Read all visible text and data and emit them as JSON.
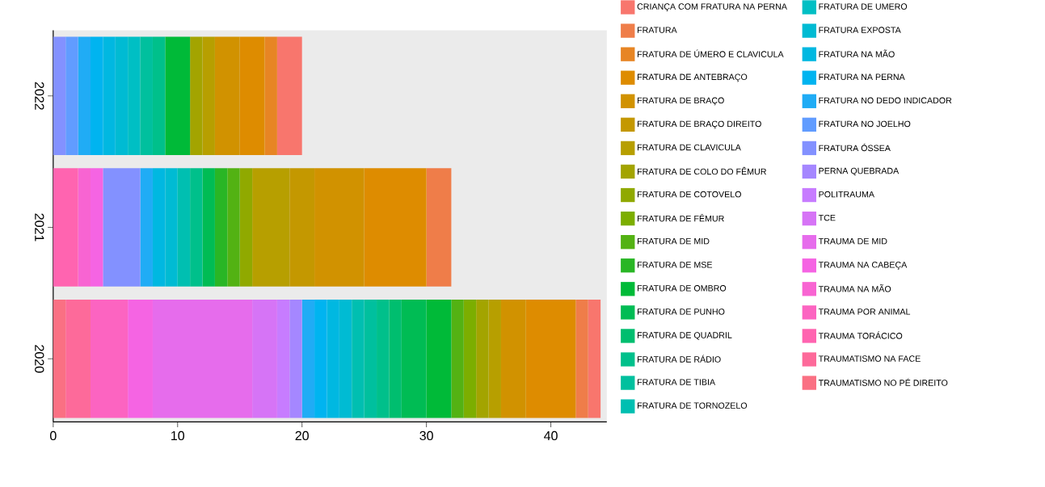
{
  "chart_data": {
    "type": "bar",
    "orientation": "horizontal",
    "stacked": true,
    "categories": [
      "2022",
      "2021",
      "2020"
    ],
    "xlim": [
      0,
      44.5
    ],
    "xticks": [
      0,
      10,
      20,
      30,
      40
    ],
    "legend": "right",
    "series": [
      {
        "name": "TRAUMATISMO NO PÉ DIREITO",
        "color": "#FA7083",
        "values": [
          null,
          null,
          1
        ]
      },
      {
        "name": "TRAUMATISMO NA FACE",
        "color": "#FD6A9A",
        "values": [
          null,
          null,
          2
        ]
      },
      {
        "name": "TRAUMA TORÁCICO",
        "color": "#FF64B0",
        "values": [
          null,
          2,
          null
        ]
      },
      {
        "name": "TRAUMA POR ANIMAL",
        "color": "#FC64C1",
        "values": [
          null,
          null,
          3
        ]
      },
      {
        "name": "TRAUMA NA MÃO",
        "color": "#F864D2",
        "values": [
          null,
          1,
          null
        ]
      },
      {
        "name": "TRAUMA NA CABEÇA",
        "color": "#F564E3",
        "values": [
          null,
          1,
          2
        ]
      },
      {
        "name": "TRAUMA DE MID",
        "color": "#E66CEC",
        "values": [
          null,
          null,
          8
        ]
      },
      {
        "name": "TCE",
        "color": "#D674F6",
        "values": [
          null,
          null,
          2
        ]
      },
      {
        "name": "POLITRAUMA",
        "color": "#C77CFF",
        "values": [
          null,
          null,
          1
        ]
      },
      {
        "name": "PERNA QUEBRADA",
        "color": "#A587FF",
        "values": [
          null,
          null,
          1
        ]
      },
      {
        "name": "FRATURA ÓSSEA",
        "color": "#8391FF",
        "values": [
          1,
          3,
          null
        ]
      },
      {
        "name": "FRATURA NO JOELHO",
        "color": "#619CFF",
        "values": [
          1,
          null,
          null
        ]
      },
      {
        "name": "FRATURA NO DEDO INDICADOR",
        "color": "#20ACF5",
        "values": [
          1,
          1,
          1
        ]
      },
      {
        "name": "FRATURA NA PERNA",
        "color": "#00B4F0",
        "values": [
          1,
          null,
          1
        ]
      },
      {
        "name": "FRATURA NA MÃO",
        "color": "#00B8E1",
        "values": [
          1,
          1,
          1
        ]
      },
      {
        "name": "FRATURA EXPOSTA",
        "color": "#00BBD3",
        "values": [
          1,
          1,
          1
        ]
      },
      {
        "name": "FRATURA DE UMERO",
        "color": "#00BFC4",
        "values": [
          1,
          null,
          null
        ]
      },
      {
        "name": "FRATURA DE TORNOZELO",
        "color": "#00BFB1",
        "values": [
          null,
          1,
          1
        ]
      },
      {
        "name": "FRATURA DE TIBIA",
        "color": "#00C09E",
        "values": [
          1,
          null,
          1
        ]
      },
      {
        "name": "FRATURA DE RÁDIO",
        "color": "#00C08B",
        "values": [
          1,
          1,
          1
        ]
      },
      {
        "name": "FRATURA DE QUADRIL",
        "color": "#00BE6F",
        "values": [
          null,
          null,
          1
        ]
      },
      {
        "name": "FRATURA DE PUNHO",
        "color": "#00BC54",
        "values": [
          null,
          1,
          2
        ]
      },
      {
        "name": "FRATURA DE OMBRO",
        "color": "#00BA38",
        "values": [
          2,
          null,
          2
        ]
      },
      {
        "name": "FRATURA DE MSE",
        "color": "#29B625",
        "values": [
          null,
          1,
          null
        ]
      },
      {
        "name": "FRATURA DE MID",
        "color": "#53B213",
        "values": [
          null,
          1,
          1
        ]
      },
      {
        "name": "FRATURA DE FÊMUR",
        "color": "#7CAE00",
        "values": [
          null,
          null,
          1
        ]
      },
      {
        "name": "FRATURA DE COTOVELO",
        "color": "#90A900",
        "values": [
          null,
          1,
          null
        ]
      },
      {
        "name": "FRATURA DE COLO DO FÊMUR",
        "color": "#A3A400",
        "values": [
          1,
          null,
          1
        ]
      },
      {
        "name": "FRATURA DE CLAVICULA",
        "color": "#B79F00",
        "values": [
          1,
          3,
          1
        ]
      },
      {
        "name": "FRATURA DE BRAÇO DIREITO",
        "color": "#C49800",
        "values": [
          null,
          2,
          null
        ]
      },
      {
        "name": "FRATURA DE BRAÇO",
        "color": "#D19200",
        "values": [
          2,
          4,
          2
        ]
      },
      {
        "name": "FRATURA DE ANTEBRAÇO",
        "color": "#DE8C00",
        "values": [
          2,
          5,
          4
        ]
      },
      {
        "name": "FRATURA  DE ÚMERO E CLAVICULA",
        "color": "#E78524",
        "values": [
          1,
          null,
          null
        ]
      },
      {
        "name": "FRATURA",
        "color": "#EF7D49",
        "values": [
          null,
          2,
          1
        ]
      },
      {
        "name": "CRIANÇA COM FRATURA NA PERNA",
        "color": "#F8766D",
        "values": [
          2,
          null,
          1
        ]
      }
    ]
  }
}
